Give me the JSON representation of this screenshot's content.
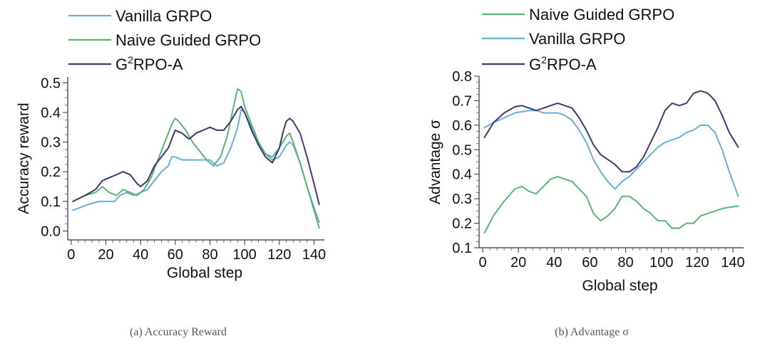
{
  "colors": {
    "vanilla": "#6aaed6",
    "naive": "#5cb377",
    "g2rpo": "#3f3a6e"
  },
  "chart_data": [
    {
      "type": "line",
      "caption": "(a) Accuracy Reward",
      "xlabel": "Global step",
      "ylabel": "Accuracy reward",
      "xlim": [
        -2,
        146
      ],
      "ylim": [
        -0.03,
        0.52
      ],
      "xticks": [
        "0",
        "20",
        "40",
        "60",
        "80",
        "100",
        "120",
        "140"
      ],
      "yticks": [
        "0.0",
        "0.1",
        "0.2",
        "0.3",
        "0.4",
        "0.5"
      ],
      "legend": {
        "position": "top-left"
      },
      "series": [
        {
          "name": "Vanilla GRPO",
          "label_main": "Vanilla GRPO",
          "label_sup": "",
          "label_tail": "",
          "color_key": "vanilla",
          "x": [
            1,
            10,
            16,
            20,
            25,
            28,
            32,
            36,
            40,
            44,
            48,
            52,
            56,
            58,
            60,
            64,
            68,
            72,
            76,
            80,
            84,
            88,
            92,
            96,
            98,
            100,
            104,
            108,
            112,
            116,
            120,
            124,
            126,
            128,
            132,
            136,
            140,
            143
          ],
          "y": [
            0.07,
            0.09,
            0.1,
            0.1,
            0.1,
            0.12,
            0.13,
            0.12,
            0.13,
            0.14,
            0.17,
            0.2,
            0.22,
            0.25,
            0.25,
            0.24,
            0.24,
            0.24,
            0.24,
            0.24,
            0.22,
            0.23,
            0.28,
            0.35,
            0.41,
            0.4,
            0.35,
            0.3,
            0.26,
            0.24,
            0.25,
            0.29,
            0.3,
            0.29,
            0.23,
            0.15,
            0.08,
            0.03
          ]
        },
        {
          "name": "Naive Guided GRPO",
          "label_main": "Naive Guided GRPO",
          "label_sup": "",
          "label_tail": "",
          "color_key": "naive",
          "x": [
            1,
            8,
            14,
            18,
            22,
            26,
            30,
            34,
            38,
            42,
            46,
            50,
            54,
            58,
            60,
            62,
            66,
            70,
            74,
            78,
            82,
            86,
            90,
            94,
            96,
            98,
            100,
            104,
            108,
            112,
            116,
            120,
            124,
            126,
            128,
            132,
            136,
            140,
            143
          ],
          "y": [
            0.1,
            0.12,
            0.13,
            0.15,
            0.13,
            0.12,
            0.14,
            0.13,
            0.12,
            0.14,
            0.18,
            0.24,
            0.3,
            0.36,
            0.38,
            0.37,
            0.34,
            0.3,
            0.27,
            0.24,
            0.22,
            0.25,
            0.32,
            0.43,
            0.48,
            0.47,
            0.42,
            0.36,
            0.3,
            0.26,
            0.25,
            0.28,
            0.32,
            0.33,
            0.3,
            0.23,
            0.15,
            0.07,
            0.01
          ]
        },
        {
          "name": "G2RPO-A",
          "label_main": "G",
          "label_sup": "2",
          "label_tail": "RPO-A",
          "color_key": "g2rpo",
          "x": [
            1,
            8,
            14,
            18,
            22,
            26,
            30,
            34,
            38,
            40,
            44,
            48,
            52,
            56,
            58,
            60,
            64,
            68,
            72,
            76,
            80,
            84,
            88,
            92,
            96,
            98,
            100,
            104,
            108,
            112,
            116,
            120,
            122,
            124,
            126,
            128,
            132,
            136,
            140,
            143
          ],
          "y": [
            0.1,
            0.12,
            0.14,
            0.17,
            0.18,
            0.19,
            0.2,
            0.19,
            0.16,
            0.15,
            0.17,
            0.22,
            0.25,
            0.28,
            0.31,
            0.34,
            0.33,
            0.31,
            0.33,
            0.34,
            0.35,
            0.34,
            0.34,
            0.37,
            0.41,
            0.42,
            0.4,
            0.34,
            0.29,
            0.25,
            0.23,
            0.28,
            0.33,
            0.37,
            0.38,
            0.37,
            0.33,
            0.25,
            0.16,
            0.09
          ]
        }
      ]
    },
    {
      "type": "line",
      "caption": "(b) Advantage σ",
      "xlabel": "Global step",
      "ylabel": "Advantage σ",
      "xlim": [
        -2,
        146
      ],
      "ylim": [
        0.1,
        0.8
      ],
      "xticks": [
        "0",
        "20",
        "40",
        "60",
        "80",
        "100",
        "120",
        "140"
      ],
      "yticks": [
        "0.1",
        "0.2",
        "0.3",
        "0.4",
        "0.5",
        "0.6",
        "0.7",
        "0.8"
      ],
      "legend": {
        "position": "top-left"
      },
      "series": [
        {
          "name": "Naive Guided GRPO",
          "label_main": "Naive Guided GRPO",
          "label_sup": "",
          "label_tail": "",
          "color_key": "naive",
          "x": [
            1,
            6,
            12,
            18,
            22,
            26,
            30,
            34,
            38,
            42,
            46,
            50,
            54,
            58,
            62,
            66,
            70,
            74,
            78,
            82,
            86,
            90,
            94,
            98,
            102,
            106,
            110,
            114,
            118,
            122,
            126,
            130,
            134,
            138,
            143
          ],
          "y": [
            0.16,
            0.23,
            0.29,
            0.34,
            0.35,
            0.33,
            0.32,
            0.35,
            0.38,
            0.39,
            0.38,
            0.37,
            0.34,
            0.31,
            0.24,
            0.21,
            0.23,
            0.26,
            0.31,
            0.31,
            0.29,
            0.26,
            0.24,
            0.21,
            0.21,
            0.18,
            0.18,
            0.2,
            0.2,
            0.23,
            0.24,
            0.25,
            0.26,
            0.265,
            0.27
          ]
        },
        {
          "name": "Vanilla GRPO",
          "label_main": "Vanilla GRPO",
          "label_sup": "",
          "label_tail": "",
          "color_key": "vanilla",
          "x": [
            1,
            6,
            12,
            18,
            22,
            26,
            30,
            34,
            38,
            42,
            46,
            50,
            54,
            58,
            62,
            66,
            70,
            74,
            78,
            82,
            86,
            90,
            94,
            98,
            102,
            106,
            110,
            114,
            118,
            122,
            126,
            130,
            134,
            138,
            143
          ],
          "y": [
            0.59,
            0.61,
            0.63,
            0.65,
            0.655,
            0.66,
            0.66,
            0.65,
            0.65,
            0.65,
            0.64,
            0.62,
            0.58,
            0.53,
            0.46,
            0.41,
            0.37,
            0.34,
            0.37,
            0.39,
            0.42,
            0.45,
            0.48,
            0.51,
            0.53,
            0.54,
            0.55,
            0.57,
            0.58,
            0.6,
            0.6,
            0.57,
            0.5,
            0.41,
            0.31
          ]
        },
        {
          "name": "G2RPO-A",
          "label_main": "G",
          "label_sup": "2",
          "label_tail": "RPO-A",
          "color_key": "g2rpo",
          "x": [
            1,
            6,
            12,
            18,
            22,
            26,
            30,
            34,
            38,
            42,
            46,
            50,
            54,
            58,
            62,
            66,
            70,
            74,
            78,
            82,
            86,
            90,
            94,
            98,
            102,
            106,
            110,
            114,
            118,
            122,
            126,
            130,
            134,
            138,
            143
          ],
          "y": [
            0.55,
            0.61,
            0.65,
            0.675,
            0.68,
            0.67,
            0.66,
            0.67,
            0.68,
            0.69,
            0.68,
            0.67,
            0.63,
            0.58,
            0.52,
            0.48,
            0.46,
            0.44,
            0.41,
            0.41,
            0.43,
            0.47,
            0.53,
            0.59,
            0.66,
            0.69,
            0.68,
            0.69,
            0.73,
            0.74,
            0.73,
            0.7,
            0.64,
            0.57,
            0.51
          ]
        }
      ]
    }
  ]
}
